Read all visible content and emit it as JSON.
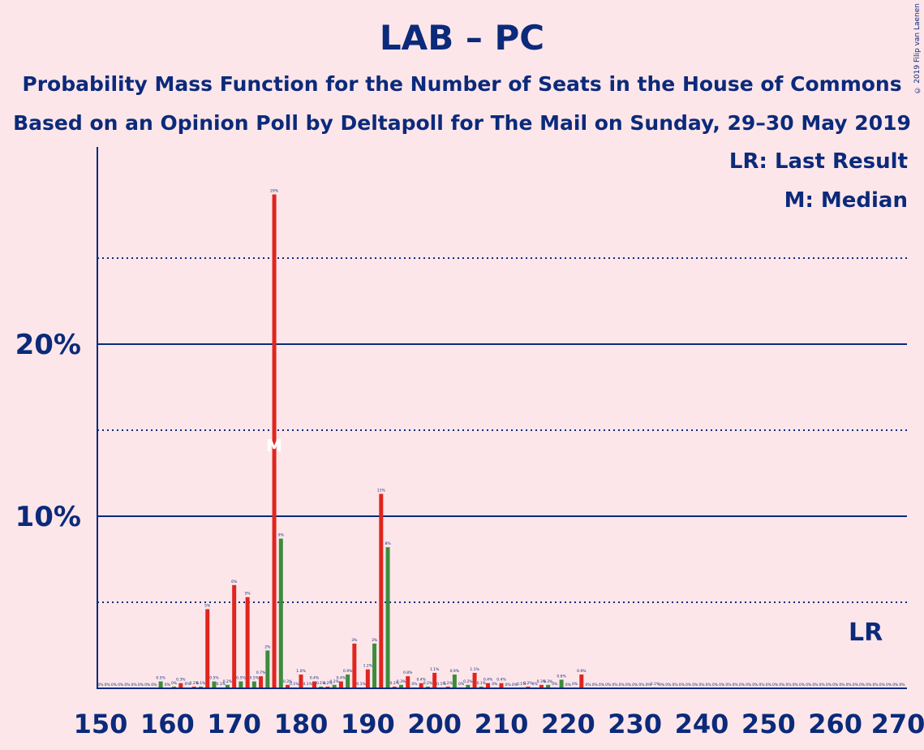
{
  "title": "LAB – PC",
  "subtitle1": "Probability Mass Function for the Number of Seats in the House of Commons",
  "subtitle2": "Based on an Opinion Poll by Deltapoll for The Mail on Sunday, 29–30 May 2019",
  "copyright": "© 2019 Filip van Laenen",
  "legend": {
    "last_result": "LR: Last Result",
    "median": "M: Median"
  },
  "markers": {
    "last_result_label": "LR",
    "last_result_x": 266,
    "median_label": "M",
    "median_x": 176
  },
  "colors": {
    "background": "#fde6ea",
    "axis": "#0b2a7a",
    "red": "#e0251e",
    "green": "#3c8c3c"
  },
  "chart_data": {
    "type": "bar",
    "title": "LAB – PC",
    "xlabel": "",
    "ylabel": "",
    "xlim": [
      150,
      270
    ],
    "ylim": [
      0,
      31.5
    ],
    "x_ticks": [
      150,
      160,
      170,
      180,
      190,
      200,
      210,
      220,
      230,
      240,
      250,
      260,
      270
    ],
    "y_ticks_major": [
      {
        "value": 10,
        "label": "10%"
      },
      {
        "value": 20,
        "label": "20%"
      }
    ],
    "y_ticks_minor": [
      5,
      15,
      25
    ],
    "series": [
      {
        "name": "Probability",
        "points": [
          {
            "x": 150,
            "v": 0,
            "l": "0%",
            "c": "r"
          },
          {
            "x": 151,
            "v": 0,
            "l": "0%",
            "c": "g"
          },
          {
            "x": 152,
            "v": 0,
            "l": "0%",
            "c": "r"
          },
          {
            "x": 153,
            "v": 0,
            "l": "0%",
            "c": "g"
          },
          {
            "x": 154,
            "v": 0,
            "l": "0%",
            "c": "r"
          },
          {
            "x": 155,
            "v": 0,
            "l": "0%",
            "c": "g"
          },
          {
            "x": 156,
            "v": 0,
            "l": "0%",
            "c": "r"
          },
          {
            "x": 157,
            "v": 0,
            "l": "0%",
            "c": "g"
          },
          {
            "x": 158,
            "v": 0,
            "l": "0%",
            "c": "r"
          },
          {
            "x": 159,
            "v": 0.4,
            "l": "0.5%",
            "c": "g"
          },
          {
            "x": 160,
            "v": 0,
            "l": "0%",
            "c": "r"
          },
          {
            "x": 161,
            "v": 0.1,
            "l": "0%",
            "c": "g"
          },
          {
            "x": 162,
            "v": 0.3,
            "l": "0.3%",
            "c": "r"
          },
          {
            "x": 163,
            "v": 0.05,
            "l": "0%",
            "c": "g"
          },
          {
            "x": 164,
            "v": 0.1,
            "l": "0.2%",
            "c": "r"
          },
          {
            "x": 165,
            "v": 0.1,
            "l": "0.1%",
            "c": "g"
          },
          {
            "x": 166,
            "v": 4.6,
            "l": "5%",
            "c": "r"
          },
          {
            "x": 167,
            "v": 0.4,
            "l": "0.5%",
            "c": "g"
          },
          {
            "x": 168,
            "v": 0.05,
            "l": "0.1%",
            "c": "r"
          },
          {
            "x": 169,
            "v": 0.2,
            "l": "0.2%",
            "c": "g"
          },
          {
            "x": 170,
            "v": 6.0,
            "l": "6%",
            "c": "r"
          },
          {
            "x": 171,
            "v": 0.4,
            "l": "0.5%",
            "c": "g"
          },
          {
            "x": 172,
            "v": 5.3,
            "l": "5%",
            "c": "r"
          },
          {
            "x": 173,
            "v": 0.4,
            "l": "0.5%",
            "c": "g"
          },
          {
            "x": 174,
            "v": 0.7,
            "l": "0.7%",
            "c": "r"
          },
          {
            "x": 175,
            "v": 2.2,
            "l": "2%",
            "c": "g"
          },
          {
            "x": 176,
            "v": 28.7,
            "l": "29%",
            "c": "r"
          },
          {
            "x": 177,
            "v": 8.7,
            "l": "9%",
            "c": "g"
          },
          {
            "x": 178,
            "v": 0.2,
            "l": "0.3%",
            "c": "r"
          },
          {
            "x": 179,
            "v": 0.05,
            "l": "0.1%",
            "c": "g"
          },
          {
            "x": 180,
            "v": 0.8,
            "l": "1.0%",
            "c": "r"
          },
          {
            "x": 181,
            "v": 0.05,
            "l": "0.1%",
            "c": "g"
          },
          {
            "x": 182,
            "v": 0.4,
            "l": "0.4%",
            "c": "r"
          },
          {
            "x": 183,
            "v": 0.1,
            "l": "0.1%",
            "c": "g"
          },
          {
            "x": 184,
            "v": 0.1,
            "l": "0.2%",
            "c": "r"
          },
          {
            "x": 185,
            "v": 0.2,
            "l": "0.2%",
            "c": "g"
          },
          {
            "x": 186,
            "v": 0.4,
            "l": "0.4%",
            "c": "r"
          },
          {
            "x": 187,
            "v": 0.8,
            "l": "0.9%",
            "c": "g"
          },
          {
            "x": 188,
            "v": 2.6,
            "l": "3%",
            "c": "r"
          },
          {
            "x": 189,
            "v": 0.05,
            "l": "0.1%",
            "c": "g"
          },
          {
            "x": 190,
            "v": 1.1,
            "l": "1.2%",
            "c": "r"
          },
          {
            "x": 191,
            "v": 2.6,
            "l": "3%",
            "c": "g"
          },
          {
            "x": 192,
            "v": 11.3,
            "l": "11%",
            "c": "r"
          },
          {
            "x": 193,
            "v": 8.2,
            "l": "8%",
            "c": "g"
          },
          {
            "x": 194,
            "v": 0.1,
            "l": "0.2%",
            "c": "r"
          },
          {
            "x": 195,
            "v": 0.2,
            "l": "0.3%",
            "c": "g"
          },
          {
            "x": 196,
            "v": 0.7,
            "l": "0.8%",
            "c": "r"
          },
          {
            "x": 197,
            "v": 0.05,
            "l": "0%",
            "c": "g"
          },
          {
            "x": 198,
            "v": 0.3,
            "l": "0.4%",
            "c": "r"
          },
          {
            "x": 199,
            "v": 0.1,
            "l": "0.2%",
            "c": "g"
          },
          {
            "x": 200,
            "v": 0.9,
            "l": "1.1%",
            "c": "r"
          },
          {
            "x": 201,
            "v": 0.05,
            "l": "0.1%",
            "c": "g"
          },
          {
            "x": 202,
            "v": 0.1,
            "l": "0.2%",
            "c": "r"
          },
          {
            "x": 203,
            "v": 0.8,
            "l": "0.9%",
            "c": "g"
          },
          {
            "x": 204,
            "v": 0.05,
            "l": "0%",
            "c": "r"
          },
          {
            "x": 205,
            "v": 0.2,
            "l": "0.2%",
            "c": "g"
          },
          {
            "x": 206,
            "v": 0.9,
            "l": "1.1%",
            "c": "r"
          },
          {
            "x": 207,
            "v": 0.1,
            "l": "0.1%",
            "c": "g"
          },
          {
            "x": 208,
            "v": 0.3,
            "l": "0.4%",
            "c": "r"
          },
          {
            "x": 209,
            "v": 0.05,
            "l": "0%",
            "c": "g"
          },
          {
            "x": 210,
            "v": 0.3,
            "l": "0.4%",
            "c": "r"
          },
          {
            "x": 211,
            "v": 0,
            "l": "0%",
            "c": "g"
          },
          {
            "x": 212,
            "v": 0,
            "l": "0%",
            "c": "r"
          },
          {
            "x": 213,
            "v": 0.05,
            "l": "0.1%",
            "c": "g"
          },
          {
            "x": 214,
            "v": 0.1,
            "l": "0.2%",
            "c": "r"
          },
          {
            "x": 215,
            "v": 0.05,
            "l": "0%",
            "c": "g"
          },
          {
            "x": 216,
            "v": 0.2,
            "l": "0.3%",
            "c": "r"
          },
          {
            "x": 217,
            "v": 0.2,
            "l": "0.3%",
            "c": "g"
          },
          {
            "x": 218,
            "v": 0.05,
            "l": "0%",
            "c": "r"
          },
          {
            "x": 219,
            "v": 0.5,
            "l": "0.6%",
            "c": "g"
          },
          {
            "x": 220,
            "v": 0,
            "l": "0%",
            "c": "r"
          },
          {
            "x": 221,
            "v": 0.05,
            "l": "0%",
            "c": "g"
          },
          {
            "x": 222,
            "v": 0.8,
            "l": "0.9%",
            "c": "r"
          },
          {
            "x": 223,
            "v": 0,
            "l": "0%",
            "c": "g"
          },
          {
            "x": 224,
            "v": 0,
            "l": "0%",
            "c": "r"
          },
          {
            "x": 225,
            "v": 0,
            "l": "0%",
            "c": "g"
          },
          {
            "x": 226,
            "v": 0,
            "l": "0%",
            "c": "r"
          },
          {
            "x": 227,
            "v": 0,
            "l": "0%",
            "c": "g"
          },
          {
            "x": 228,
            "v": 0,
            "l": "0%",
            "c": "r"
          },
          {
            "x": 229,
            "v": 0,
            "l": "0%",
            "c": "g"
          },
          {
            "x": 230,
            "v": 0,
            "l": "0%",
            "c": "r"
          },
          {
            "x": 231,
            "v": 0,
            "l": "0%",
            "c": "g"
          },
          {
            "x": 232,
            "v": 0,
            "l": "0%",
            "c": "r"
          },
          {
            "x": 233,
            "v": 0.05,
            "l": "0.1%",
            "c": "g"
          },
          {
            "x": 234,
            "v": 0,
            "l": "0%",
            "c": "r"
          },
          {
            "x": 235,
            "v": 0,
            "l": "0%",
            "c": "g"
          },
          {
            "x": 236,
            "v": 0,
            "l": "0%",
            "c": "r"
          },
          {
            "x": 237,
            "v": 0,
            "l": "0%",
            "c": "g"
          },
          {
            "x": 238,
            "v": 0,
            "l": "0%",
            "c": "r"
          },
          {
            "x": 239,
            "v": 0,
            "l": "0%",
            "c": "g"
          },
          {
            "x": 240,
            "v": 0,
            "l": "0%",
            "c": "r"
          },
          {
            "x": 241,
            "v": 0,
            "l": "0%",
            "c": "g"
          },
          {
            "x": 242,
            "v": 0,
            "l": "0%",
            "c": "r"
          },
          {
            "x": 243,
            "v": 0,
            "l": "0%",
            "c": "g"
          },
          {
            "x": 244,
            "v": 0,
            "l": "0%",
            "c": "r"
          },
          {
            "x": 245,
            "v": 0,
            "l": "0%",
            "c": "g"
          },
          {
            "x": 246,
            "v": 0,
            "l": "0%",
            "c": "r"
          },
          {
            "x": 247,
            "v": 0,
            "l": "0%",
            "c": "g"
          },
          {
            "x": 248,
            "v": 0,
            "l": "0%",
            "c": "r"
          },
          {
            "x": 249,
            "v": 0,
            "l": "0%",
            "c": "g"
          },
          {
            "x": 250,
            "v": 0,
            "l": "0%",
            "c": "r"
          },
          {
            "x": 251,
            "v": 0,
            "l": "0%",
            "c": "g"
          },
          {
            "x": 252,
            "v": 0,
            "l": "0%",
            "c": "r"
          },
          {
            "x": 253,
            "v": 0,
            "l": "0%",
            "c": "g"
          },
          {
            "x": 254,
            "v": 0,
            "l": "0%",
            "c": "r"
          },
          {
            "x": 255,
            "v": 0,
            "l": "0%",
            "c": "g"
          },
          {
            "x": 256,
            "v": 0,
            "l": "0%",
            "c": "r"
          },
          {
            "x": 257,
            "v": 0,
            "l": "0%",
            "c": "g"
          },
          {
            "x": 258,
            "v": 0,
            "l": "0%",
            "c": "r"
          },
          {
            "x": 259,
            "v": 0,
            "l": "0%",
            "c": "g"
          },
          {
            "x": 260,
            "v": 0,
            "l": "0%",
            "c": "r"
          },
          {
            "x": 261,
            "v": 0,
            "l": "0%",
            "c": "g"
          },
          {
            "x": 262,
            "v": 0,
            "l": "0%",
            "c": "r"
          },
          {
            "x": 263,
            "v": 0,
            "l": "0%",
            "c": "g"
          },
          {
            "x": 264,
            "v": 0,
            "l": "0%",
            "c": "r"
          },
          {
            "x": 265,
            "v": 0,
            "l": "0%",
            "c": "g"
          },
          {
            "x": 266,
            "v": 0,
            "l": "0%",
            "c": "r"
          },
          {
            "x": 267,
            "v": 0,
            "l": "0%",
            "c": "g"
          },
          {
            "x": 268,
            "v": 0,
            "l": "0%",
            "c": "r"
          },
          {
            "x": 269,
            "v": 0,
            "l": "0%",
            "c": "g"
          },
          {
            "x": 270,
            "v": 0,
            "l": "0%",
            "c": "r"
          }
        ]
      }
    ]
  }
}
